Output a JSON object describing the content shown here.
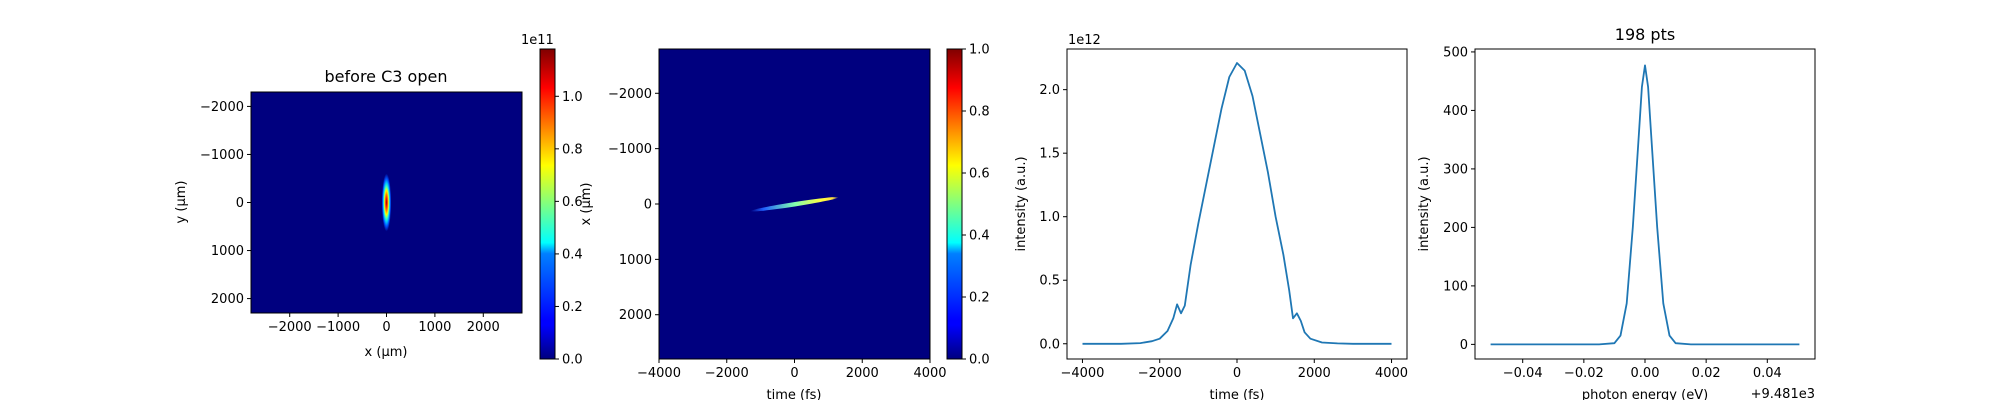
{
  "chart_data": [
    {
      "type": "heatmap",
      "title": "before C3 open",
      "xlabel": "x (μm)",
      "ylabel": "y (μm)",
      "xlim": [
        -2800,
        2800
      ],
      "ylim": [
        2300,
        -2300
      ],
      "xticks": [
        -2000,
        -1000,
        0,
        1000,
        2000
      ],
      "yticks": [
        -2000,
        -1000,
        0,
        1000,
        2000
      ],
      "colormap": "jet",
      "colorbar": {
        "min": 0,
        "max": 1.18,
        "ticks": [
          0.0,
          0.2,
          0.4,
          0.6,
          0.8,
          1.0
        ],
        "offset_label": "1e11"
      },
      "spot": {
        "center_x": 0,
        "center_y": 0,
        "sigma_x": 70,
        "sigma_y": 430,
        "peak": 1.18
      }
    },
    {
      "type": "heatmap",
      "title": "",
      "xlabel": "time (fs)",
      "ylabel": "x (μm)",
      "xlim": [
        -4000,
        4000
      ],
      "ylim": [
        2800,
        -2800
      ],
      "xticks": [
        -4000,
        -2000,
        0,
        2000,
        4000
      ],
      "yticks": [
        -2000,
        -1000,
        0,
        1000,
        2000
      ],
      "colormap": "jet",
      "colorbar": {
        "min": 0,
        "max": 1.0,
        "ticks": [
          0.0,
          0.2,
          0.4,
          0.6,
          0.8,
          1.0
        ],
        "offset_label": ""
      },
      "streak": {
        "x_start": -1300,
        "y_start": 130,
        "x_end": 1300,
        "y_end": -120,
        "peak": 1.0
      }
    },
    {
      "type": "line",
      "xlabel": "time (fs)",
      "ylabel": "intensity (a.u.)",
      "xlim": [
        -4400,
        4400
      ],
      "ylim": [
        -0.12,
        2.32
      ],
      "xticks": [
        -4000,
        -2000,
        0,
        2000,
        4000
      ],
      "yticks": [
        0.0,
        0.5,
        1.0,
        1.5,
        2.0
      ],
      "offset_label": "1e12",
      "color": "#1f77b4",
      "x": [
        -4000,
        -3000,
        -2500,
        -2200,
        -2000,
        -1800,
        -1650,
        -1550,
        -1450,
        -1350,
        -1200,
        -1000,
        -800,
        -600,
        -400,
        -200,
        0,
        200,
        400,
        600,
        800,
        1000,
        1200,
        1350,
        1450,
        1550,
        1650,
        1750,
        1900,
        2200,
        2600,
        3000,
        4000
      ],
      "y": [
        0.0,
        0.0,
        0.005,
        0.02,
        0.04,
        0.1,
        0.2,
        0.31,
        0.24,
        0.3,
        0.62,
        0.95,
        1.25,
        1.55,
        1.85,
        2.1,
        2.21,
        2.15,
        1.95,
        1.65,
        1.35,
        1.0,
        0.7,
        0.42,
        0.2,
        0.24,
        0.18,
        0.09,
        0.04,
        0.01,
        0.003,
        0.0,
        0.0
      ]
    },
    {
      "type": "line",
      "title": "198 pts",
      "xlabel": "photon energy (eV)",
      "ylabel": "intensity (a.u.)",
      "xlim": [
        -0.0556,
        0.0556
      ],
      "ylim": [
        -25,
        505
      ],
      "xticks": [
        -0.04,
        -0.02,
        0.0,
        0.02,
        0.04
      ],
      "xtick_labels": [
        "−0.04",
        "−0.02",
        "0.00",
        "0.02",
        "0.04"
      ],
      "yticks": [
        0,
        100,
        200,
        300,
        400,
        500
      ],
      "offset_label": "+9.481e3",
      "color": "#1f77b4",
      "x": [
        -0.0505,
        -0.03,
        -0.015,
        -0.01,
        -0.008,
        -0.006,
        -0.004,
        -0.002,
        -0.001,
        0.0,
        0.001,
        0.002,
        0.004,
        0.006,
        0.008,
        0.01,
        0.015,
        0.03,
        0.0505
      ],
      "y": [
        0,
        0,
        0,
        2,
        15,
        70,
        200,
        360,
        440,
        477,
        440,
        360,
        200,
        70,
        15,
        2,
        0,
        0,
        0
      ]
    }
  ]
}
